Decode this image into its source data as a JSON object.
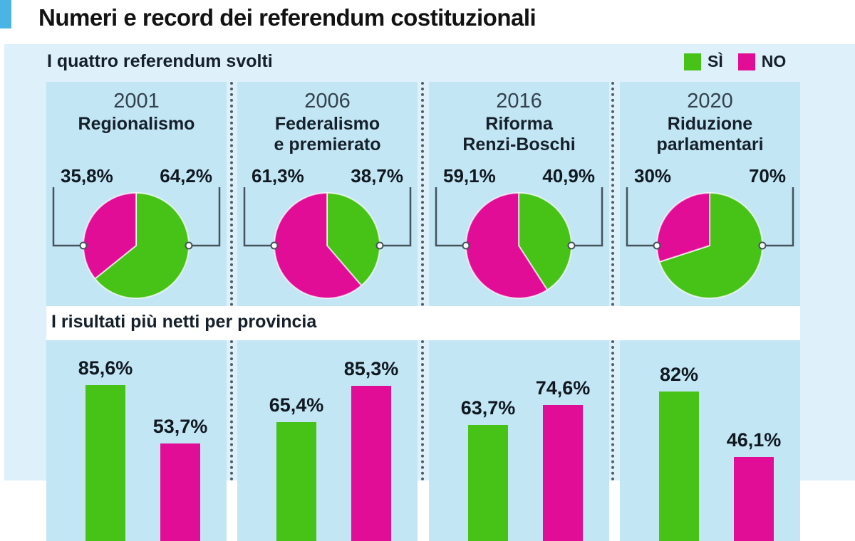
{
  "title": "Numeri e record dei referendum costituzionali",
  "colors": {
    "si": "#47c217",
    "no": "#e20d96",
    "accent": "#4ab5e5",
    "panel_bg": "#c3e6f5",
    "section_bg": "#def0f9"
  },
  "legend": {
    "si_label": "SÌ",
    "no_label": "NO"
  },
  "sections": {
    "referendums": {
      "heading": "I quattro referendum svolti",
      "items": [
        {
          "year": "2001",
          "name": "Regionalismo",
          "si": 64.2,
          "no": 35.8,
          "si_label": "64,2%",
          "no_label": "35,8%"
        },
        {
          "year": "2006",
          "name": "Federalismo\ne premierato",
          "si": 38.7,
          "no": 61.3,
          "si_label": "38,7%",
          "no_label": "61,3%"
        },
        {
          "year": "2016",
          "name": "Riforma\nRenzi-Boschi",
          "si": 40.9,
          "no": 59.1,
          "si_label": "40,9%",
          "no_label": "59,1%"
        },
        {
          "year": "2020",
          "name": "Riduzione\nparlamentari",
          "si": 70,
          "no": 30,
          "si_label": "70%",
          "no_label": "30%"
        }
      ]
    },
    "provinces": {
      "heading": "I risultati più netti per provincia",
      "items": [
        {
          "si": 85.6,
          "no": 53.7,
          "si_label": "85,6%",
          "no_label": "53,7%"
        },
        {
          "si": 65.4,
          "no": 85.3,
          "si_label": "65,4%",
          "no_label": "85,3%"
        },
        {
          "si": 63.7,
          "no": 74.6,
          "si_label": "63,7%",
          "no_label": "74,6%"
        },
        {
          "si": 82,
          "no": 46.1,
          "si_label": "82%",
          "no_label": "46,1%"
        }
      ]
    }
  },
  "chart_data": [
    {
      "type": "pie",
      "title": "I quattro referendum svolti",
      "legend_entries": [
        "SÌ",
        "NO"
      ],
      "legend_position": "top-right",
      "charts": [
        {
          "label": "2001 Regionalismo",
          "slices": {
            "SÌ": 64.2,
            "NO": 35.8
          }
        },
        {
          "label": "2006 Federalismo e premierato",
          "slices": {
            "SÌ": 38.7,
            "NO": 61.3
          }
        },
        {
          "label": "2016 Riforma Renzi-Boschi",
          "slices": {
            "SÌ": 40.9,
            "NO": 59.1
          }
        },
        {
          "label": "2020 Riduzione parlamentari",
          "slices": {
            "SÌ": 70,
            "NO": 30
          }
        }
      ]
    },
    {
      "type": "bar",
      "title": "I risultati più netti per provincia",
      "categories": [
        "2001 Regionalismo",
        "2006 Federalismo e premierato",
        "2016 Riforma Renzi-Boschi",
        "2020 Riduzione parlamentari"
      ],
      "series": [
        {
          "name": "SÌ",
          "values": [
            85.6,
            65.4,
            63.7,
            82
          ]
        },
        {
          "name": "NO",
          "values": [
            53.7,
            85.3,
            74.6,
            46.1
          ]
        }
      ],
      "ylim": [
        0,
        100
      ],
      "grid": false,
      "data_labels": true
    }
  ]
}
